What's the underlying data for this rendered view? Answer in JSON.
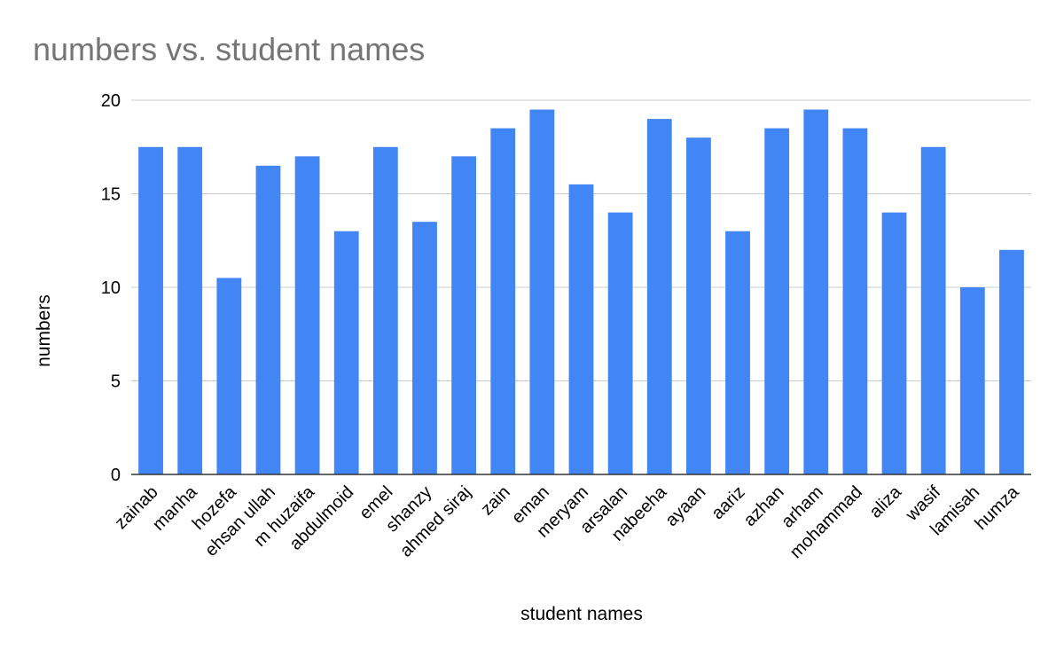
{
  "chart_data": {
    "type": "bar",
    "title": "numbers vs. student names",
    "xlabel": "student names",
    "ylabel": "numbers",
    "ylim": [
      0,
      20
    ],
    "yticks": [
      0,
      5,
      10,
      15,
      20
    ],
    "grid": true,
    "legend": "none",
    "bar_color": "#4285f4",
    "categories": [
      "zainab",
      "manha",
      "hozefa",
      "ehsan ullah",
      "m huzaifa",
      "abdulmoid",
      "emel",
      "shanzy",
      "ahmed siraj",
      "zain",
      "eman",
      "meryam",
      "arsalan",
      "nabeeha",
      "ayaan",
      "aariz",
      "azhan",
      "arham",
      "mohammad",
      "aliza",
      "wasif",
      "lamisah",
      "humza"
    ],
    "values": [
      17.5,
      17.5,
      10.5,
      16.5,
      17,
      13,
      17.5,
      13.5,
      17,
      18.5,
      19.5,
      15.5,
      14,
      19,
      18,
      13,
      18.5,
      19.5,
      18.5,
      14,
      17.5,
      10,
      12
    ]
  }
}
